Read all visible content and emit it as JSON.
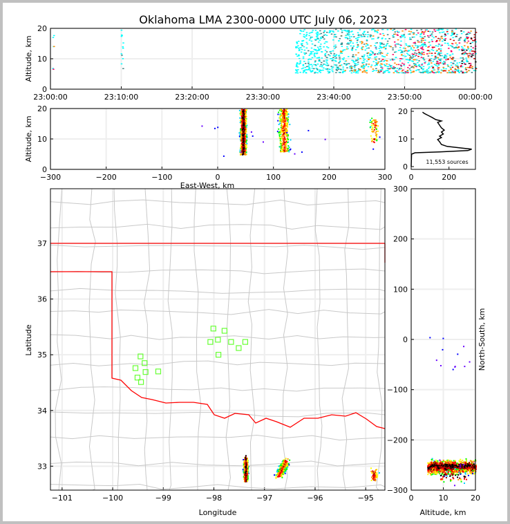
{
  "title": "Oklahoma LMA 2300-0000 UTC July 06, 2023",
  "chart_data": [
    {
      "type": "heatmap",
      "name": "time-altitude",
      "ylabel": "Altitude, km",
      "xlabel": "",
      "x_tick_labels": [
        "23:00:00",
        "23:10:00",
        "23:20:00",
        "23:30:00",
        "23:40:00",
        "23:50:00",
        "00:00:00"
      ],
      "xlim_minutes": [
        0,
        60
      ],
      "ylim": [
        0,
        20
      ],
      "y_ticks": [
        0,
        10,
        20
      ],
      "clusters": [
        {
          "t": [
            34.5,
            60
          ],
          "alt": [
            5.5,
            20
          ],
          "count": 1400
        },
        {
          "t": [
            9.9,
            10.2
          ],
          "alt": [
            6.5,
            20
          ],
          "count": 12
        },
        {
          "t": [
            0.2,
            0.4
          ],
          "alt": [
            6.5,
            18
          ],
          "count": 6
        }
      ]
    },
    {
      "type": "scatter",
      "name": "east-west-altitude",
      "xlabel": "East-West, km",
      "ylabel": "Altitude, km",
      "xlim": [
        -300,
        300
      ],
      "ylim": [
        0,
        20
      ],
      "x_ticks": [
        -300,
        -200,
        -100,
        0,
        100,
        200,
        300
      ],
      "y_ticks": [
        0,
        10,
        20
      ]
    },
    {
      "type": "line",
      "name": "altitude-histogram",
      "xlim": [
        0,
        340
      ],
      "ylim": [
        -1,
        21
      ],
      "x_ticks": [
        0,
        200
      ],
      "y_ticks": [
        0,
        10,
        20
      ],
      "annotation": "11,553 sources",
      "profile": [
        [
          0,
          0
        ],
        [
          2,
          4.5
        ],
        [
          20,
          5.0
        ],
        [
          150,
          5.3
        ],
        [
          300,
          5.8
        ],
        [
          320,
          6.3
        ],
        [
          270,
          6.7
        ],
        [
          230,
          7.0
        ],
        [
          190,
          7.3
        ],
        [
          160,
          8
        ],
        [
          150,
          9
        ],
        [
          140,
          9.8
        ],
        [
          160,
          10.5
        ],
        [
          150,
          11
        ],
        [
          170,
          11.8
        ],
        [
          160,
          12.5
        ],
        [
          175,
          13.2
        ],
        [
          160,
          14
        ],
        [
          150,
          15
        ],
        [
          140,
          16
        ],
        [
          160,
          16.5
        ],
        [
          130,
          17
        ],
        [
          110,
          17.8
        ],
        [
          90,
          18.5
        ],
        [
          70,
          19.2
        ],
        [
          60,
          19.7
        ]
      ]
    },
    {
      "type": "scatter",
      "name": "plan-view",
      "xlabel": "Longitude",
      "ylabel": "Latitude",
      "xlim": [
        -101.23,
        -94.62
      ],
      "ylim": [
        32.57,
        37.98
      ],
      "x_ticks": [
        -101,
        -100,
        -99,
        -98,
        -97,
        -96,
        -95
      ],
      "y_ticks": [
        33,
        34,
        35,
        36,
        37
      ],
      "stations": [
        [
          -98.01,
          35.47
        ],
        [
          -97.79,
          35.43
        ],
        [
          -97.92,
          35.27
        ],
        [
          -98.07,
          35.23
        ],
        [
          -97.66,
          35.23
        ],
        [
          -97.38,
          35.23
        ],
        [
          -97.51,
          35.12
        ],
        [
          -97.91,
          35.0
        ],
        [
          -99.45,
          34.97
        ],
        [
          -99.37,
          34.85
        ],
        [
          -99.55,
          34.76
        ],
        [
          -99.35,
          34.69
        ],
        [
          -99.1,
          34.7
        ],
        [
          -99.51,
          34.59
        ],
        [
          -99.44,
          34.51
        ]
      ],
      "storms": [
        {
          "lon": -97.38,
          "lat": 32.95,
          "ew_km": 45,
          "ns_km": -255,
          "spread_lon": 0.06,
          "spread_lat": 0.28,
          "alt": [
            5,
            20
          ],
          "count": 700
        },
        {
          "lon": -96.65,
          "lat": 32.98,
          "ew_km": 118,
          "ns_km": -250,
          "spread_lon": 0.12,
          "spread_lat": 0.2,
          "alt": [
            6,
            20
          ],
          "count": 350
        },
        {
          "lon": -94.85,
          "lat": 32.85,
          "ew_km": 280,
          "ns_km": -270,
          "spread_lon": 0.12,
          "spread_lat": 0.18,
          "alt": [
            9,
            17
          ],
          "count": 60
        }
      ]
    },
    {
      "type": "scatter",
      "name": "altitude-north-south",
      "xlabel": "Altitude, km",
      "ylabel": "North-South, km",
      "xlim": [
        0,
        20
      ],
      "ylim": [
        -300,
        300
      ],
      "x_ticks": [
        0,
        10,
        20
      ],
      "y_ticks": [
        -300,
        -200,
        -100,
        0,
        100,
        200,
        300
      ]
    }
  ],
  "labels": {
    "p1_ylabel": "Altitude, km",
    "p2_ylabel": "Altitude, km",
    "p2_xlabel": "East-West, km",
    "hist_note": "11,553 sources",
    "map_xlabel": "Longitude",
    "map_ylabel": "Latitude",
    "ns_xlabel": "Altitude, km",
    "ns_ylabel": "North-South, km"
  },
  "colors": {
    "border": "#ff0000",
    "county": "#c8c8c8",
    "station": "#66ff33"
  }
}
